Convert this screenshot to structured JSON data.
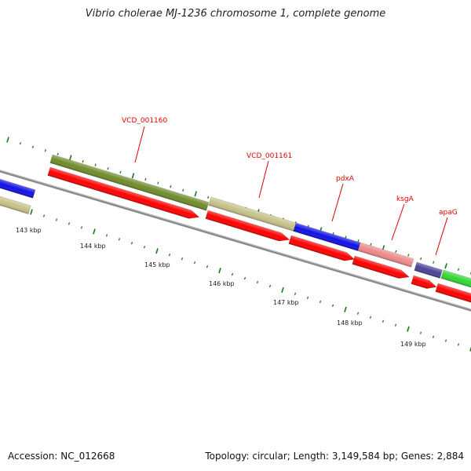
{
  "title": "Vibrio cholerae MJ-1236 chromosome 1, complete genome",
  "footer": {
    "accession": "Accession: NC_012668",
    "summary": "Topology: circular; Length: 3,149,584 bp; Genes: 2,884"
  },
  "colors": {
    "cds": "#ff0000",
    "backbone": "#888888",
    "label": "#e00000",
    "tick": "#1a7a1a",
    "olive": "#6f8c2a",
    "khaki": "#c7c288",
    "blue": "#1010e6",
    "pink": "#ee8a8a",
    "slate": "#4a4496",
    "green": "#34d634"
  },
  "gene_labels": [
    "VCD_001160",
    "VCD_001161",
    "pdxA",
    "ksgA",
    "apaG"
  ],
  "scale_labels": [
    "143 kbp",
    "144 kbp",
    "145 kbp",
    "146 kbp",
    "147 kbp",
    "148 kbp",
    "149 kbp"
  ]
}
